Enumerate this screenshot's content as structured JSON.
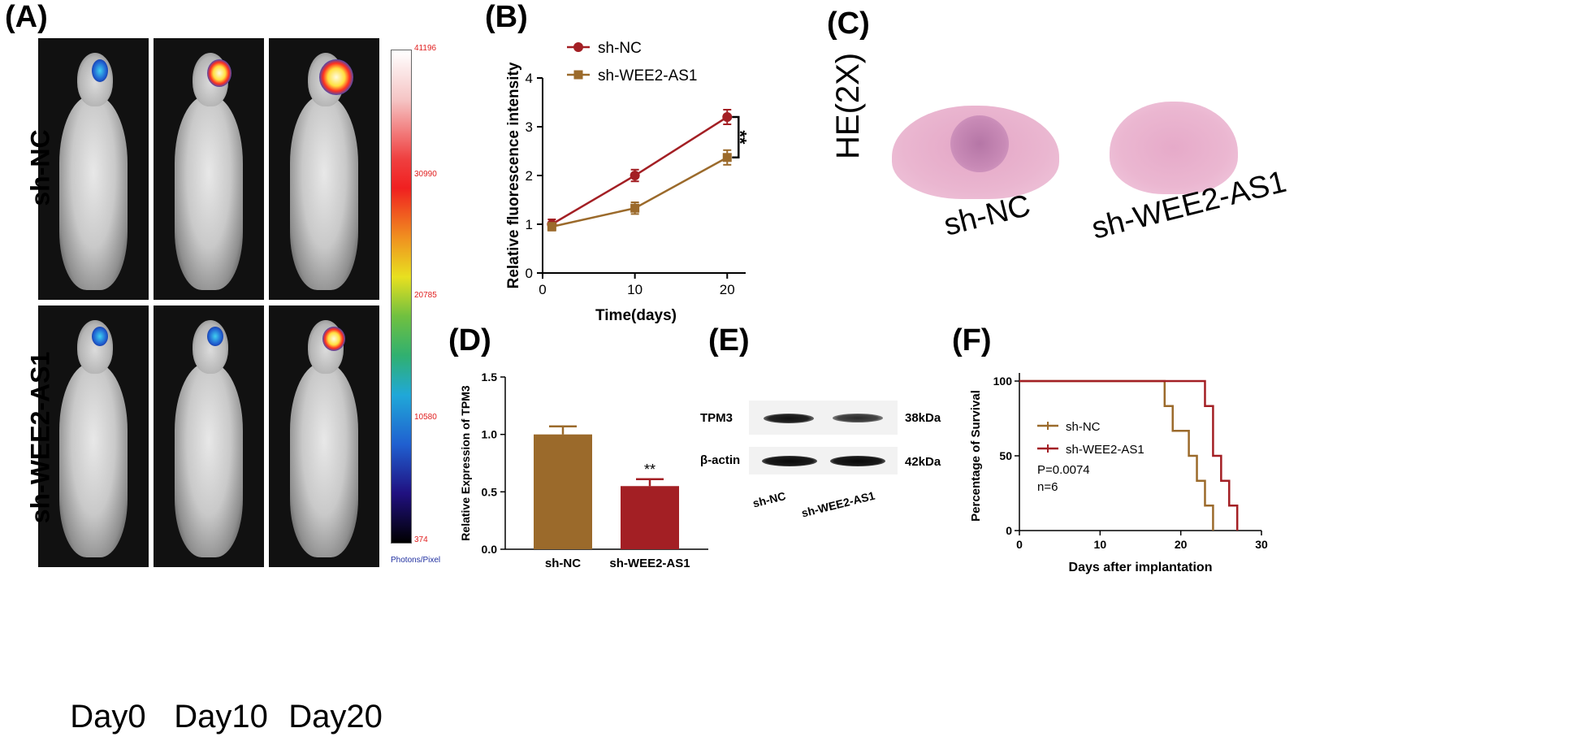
{
  "panels": {
    "a": "(A)",
    "b": "(B)",
    "c": "(C)",
    "d": "(D)",
    "e": "(E)",
    "f": "(F)"
  },
  "panel_a": {
    "row_labels": [
      "sh-NC",
      "sh-WEE2-AS1"
    ],
    "day_labels": [
      "Day0",
      "Day10",
      "Day20"
    ],
    "colorbar_ticks": [
      "41196",
      "30990",
      "20785",
      "10580",
      "374"
    ],
    "colorbar_unit": "Photons/Pixel"
  },
  "panel_c": {
    "stain_label": "HE(2X)",
    "sample_labels": [
      "sh-NC",
      "sh-WEE2-AS1"
    ]
  },
  "panel_e": {
    "bands": [
      {
        "protein": "TPM3",
        "size": "38kDa"
      },
      {
        "protein": "β-actin",
        "size": "42kDa"
      }
    ],
    "lanes": [
      "sh-NC",
      "sh-WEE2-AS1"
    ]
  },
  "chart_data": [
    {
      "panel": "B",
      "type": "line",
      "title": "",
      "xlabel": "Time(days)",
      "ylabel": "Relative fluorescence intensity",
      "x": [
        1,
        10,
        20
      ],
      "xticks": [
        "0",
        "10",
        "20"
      ],
      "yticks": [
        "0",
        "1",
        "2",
        "3",
        "4"
      ],
      "xlim": [
        0,
        22
      ],
      "ylim": [
        0,
        4
      ],
      "series": [
        {
          "name": "sh-NC",
          "values": [
            1.0,
            2.0,
            3.2
          ],
          "errors": [
            0.1,
            0.12,
            0.15
          ],
          "color": "#a31f24",
          "marker": "circle"
        },
        {
          "name": "sh-WEE2-AS1",
          "values": [
            0.95,
            1.33,
            2.37
          ],
          "errors": [
            0.08,
            0.12,
            0.15
          ],
          "color": "#9b6a2b",
          "marker": "square"
        }
      ],
      "annotation": "**"
    },
    {
      "panel": "D",
      "type": "bar",
      "title": "",
      "xlabel": "",
      "ylabel": "Relative Expression of TPM3",
      "categories": [
        "sh-NC",
        "sh-WEE2-AS1"
      ],
      "values": [
        1.0,
        0.55
      ],
      "errors": [
        0.07,
        0.06
      ],
      "colors": [
        "#9b6a2b",
        "#a31f24"
      ],
      "yticks": [
        "0.0",
        "0.5",
        "1.0",
        "1.5"
      ],
      "ylim": [
        0,
        1.5
      ],
      "annotation": "**"
    },
    {
      "panel": "F",
      "type": "line",
      "title": "",
      "xlabel": "Days after implantation",
      "ylabel": "Percentage of Survival",
      "xticks": [
        "0",
        "10",
        "20",
        "30"
      ],
      "yticks": [
        "0",
        "50",
        "100"
      ],
      "xlim": [
        0,
        30
      ],
      "ylim": [
        0,
        100
      ],
      "series": [
        {
          "name": "sh-NC",
          "color": "#9b6a2b",
          "steps": [
            [
              0,
              100
            ],
            [
              18,
              100
            ],
            [
              18,
              83.3
            ],
            [
              19,
              83.3
            ],
            [
              19,
              66.7
            ],
            [
              21,
              66.7
            ],
            [
              21,
              50
            ],
            [
              22,
              50
            ],
            [
              22,
              33.3
            ],
            [
              23,
              33.3
            ],
            [
              23,
              16.7
            ],
            [
              24,
              16.7
            ],
            [
              24,
              0
            ]
          ]
        },
        {
          "name": "sh-WEE2-AS1",
          "color": "#a31f24",
          "steps": [
            [
              0,
              100
            ],
            [
              23,
              100
            ],
            [
              23,
              83.3
            ],
            [
              24,
              83.3
            ],
            [
              24,
              50
            ],
            [
              25,
              50
            ],
            [
              25,
              33.3
            ],
            [
              26,
              33.3
            ],
            [
              26,
              16.7
            ],
            [
              27,
              16.7
            ],
            [
              27,
              0
            ]
          ]
        }
      ],
      "stats": [
        "P=0.0074",
        "n=6"
      ]
    }
  ]
}
